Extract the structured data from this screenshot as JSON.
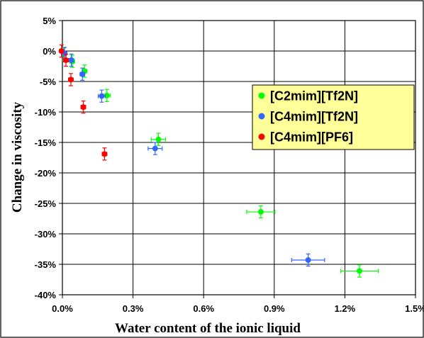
{
  "chart_data": {
    "type": "scatter",
    "title": "",
    "xlabel": "Water content of the ionic liquid",
    "ylabel": "Change in viscosity",
    "xlim": [
      0,
      1.5
    ],
    "ylim": [
      -40,
      5
    ],
    "x_ticks": [
      {
        "value": 0.0,
        "label": "0.0%"
      },
      {
        "value": 0.3,
        "label": "0.3%"
      },
      {
        "value": 0.6,
        "label": "0.6%"
      },
      {
        "value": 0.9,
        "label": "0.9%"
      },
      {
        "value": 1.2,
        "label": "1.2%"
      },
      {
        "value": 1.5,
        "label": "1.5%"
      }
    ],
    "y_ticks": [
      {
        "value": 5,
        "label": "5%"
      },
      {
        "value": 0,
        "label": "0%"
      },
      {
        "value": -5,
        "label": "-5%"
      },
      {
        "value": -10,
        "label": "-10%"
      },
      {
        "value": -15,
        "label": "-15%"
      },
      {
        "value": -20,
        "label": "-20%"
      },
      {
        "value": -25,
        "label": "-25%"
      },
      {
        "value": -30,
        "label": "-30%"
      },
      {
        "value": -35,
        "label": "-35%"
      },
      {
        "value": -40,
        "label": "-40%"
      }
    ],
    "grid": true,
    "plot_background": "#ffffff",
    "frame_background": "#ffffff",
    "legend": {
      "placement": "right",
      "background": "#ffff99"
    },
    "series": [
      {
        "name": "[C2mim][Tf2N]",
        "color": "#00ff00",
        "points": [
          {
            "x": 0.006,
            "y": -0.5,
            "xerr": 0.01,
            "yerr": 1.0
          },
          {
            "x": 0.042,
            "y": -1.7,
            "xerr": 0.01,
            "yerr": 1.0
          },
          {
            "x": 0.094,
            "y": -3.3,
            "xerr": 0.01,
            "yerr": 1.0
          },
          {
            "x": 0.189,
            "y": -7.3,
            "xerr": 0.015,
            "yerr": 1.0
          },
          {
            "x": 0.408,
            "y": -14.5,
            "xerr": 0.03,
            "yerr": 1.0
          },
          {
            "x": 0.843,
            "y": -26.4,
            "xerr": 0.06,
            "yerr": 1.0
          },
          {
            "x": 1.262,
            "y": -36.1,
            "xerr": 0.08,
            "yerr": 1.0
          }
        ]
      },
      {
        "name": "[C4mim][Tf2N]",
        "color": "#3366ff",
        "points": [
          {
            "x": 0.009,
            "y": -0.4,
            "xerr": 0.01,
            "yerr": 1.0
          },
          {
            "x": 0.038,
            "y": -1.5,
            "xerr": 0.01,
            "yerr": 1.0
          },
          {
            "x": 0.085,
            "y": -3.8,
            "xerr": 0.01,
            "yerr": 1.0
          },
          {
            "x": 0.167,
            "y": -7.4,
            "xerr": 0.015,
            "yerr": 1.0
          },
          {
            "x": 0.394,
            "y": -16.0,
            "xerr": 0.03,
            "yerr": 1.0
          },
          {
            "x": 1.044,
            "y": -34.3,
            "xerr": 0.07,
            "yerr": 1.0
          }
        ]
      },
      {
        "name": "[C4mim][PF6]",
        "color": "#ff0000",
        "points": [
          {
            "x": -0.004,
            "y": 0.0,
            "xerr": 0.008,
            "yerr": 1.0
          },
          {
            "x": 0.015,
            "y": -1.5,
            "xerr": 0.01,
            "yerr": 1.0
          },
          {
            "x": 0.036,
            "y": -4.7,
            "xerr": 0.01,
            "yerr": 1.0
          },
          {
            "x": 0.089,
            "y": -9.2,
            "xerr": 0.01,
            "yerr": 1.0
          },
          {
            "x": 0.179,
            "y": -16.9,
            "xerr": 0.01,
            "yerr": 1.0
          }
        ]
      }
    ]
  }
}
